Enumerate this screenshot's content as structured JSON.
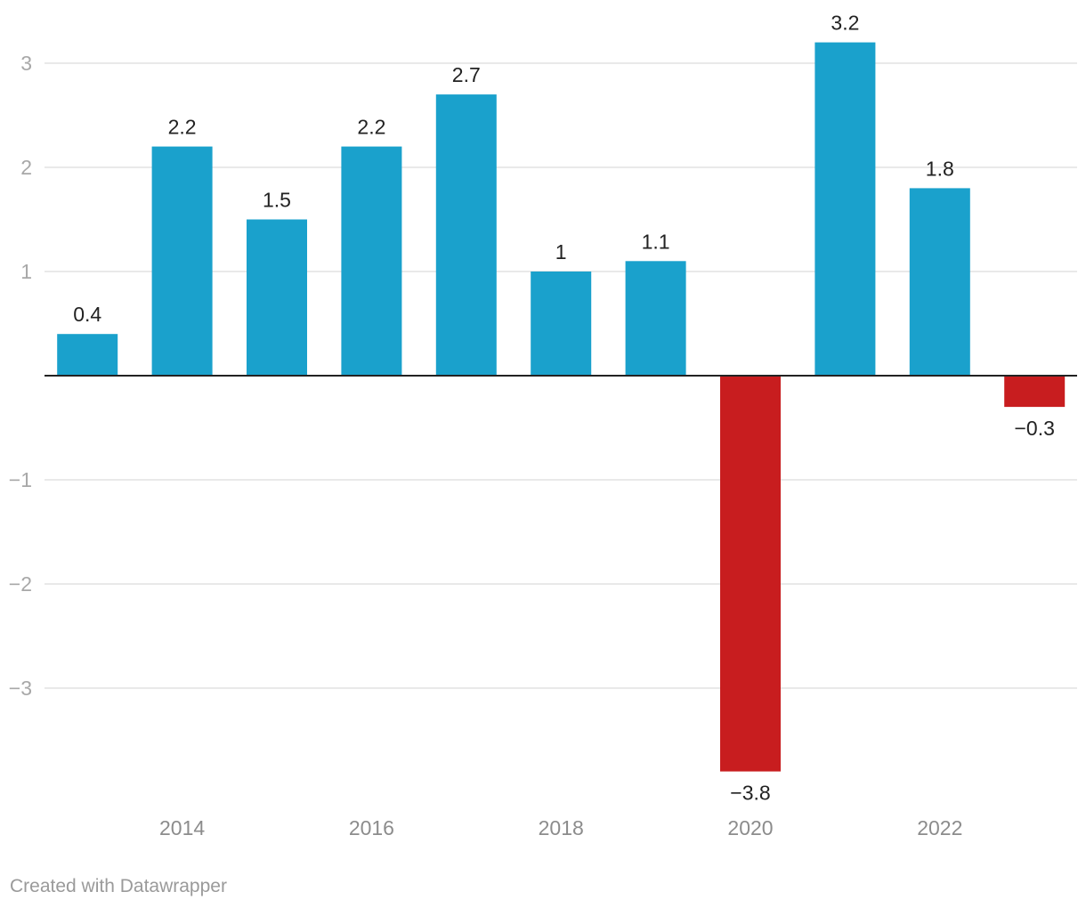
{
  "chart_data": {
    "type": "bar",
    "title": "",
    "xlabel": "",
    "ylabel": "",
    "categories": [
      "2013",
      "2014",
      "2015",
      "2016",
      "2017",
      "2018",
      "2019",
      "2020",
      "2021",
      "2022",
      "2023"
    ],
    "values": [
      0.4,
      2.2,
      1.5,
      2.2,
      2.7,
      1.0,
      1.1,
      -3.8,
      3.2,
      1.8,
      -0.3
    ],
    "value_labels": [
      "0.4",
      "2.2",
      "1.5",
      "2.2",
      "2.7",
      "1",
      "1.1",
      "−3.8",
      "3.2",
      "1.8",
      "−0.3"
    ],
    "x_tick_labels": [
      "2014",
      "2016",
      "2018",
      "2020",
      "2022"
    ],
    "y_ticks": [
      3,
      2,
      1,
      -1,
      -2,
      -3
    ],
    "y_tick_labels": [
      "3",
      "2",
      "1",
      "−1",
      "−2",
      "−3"
    ],
    "ylim": [
      -4,
      3.4
    ],
    "grid": true,
    "colors": {
      "positive": "#1aa1cc",
      "negative": "#c81d1f",
      "grid": "#e2e2e2",
      "baseline": "#222222"
    }
  },
  "footer": {
    "credit": "Created with Datawrapper"
  }
}
